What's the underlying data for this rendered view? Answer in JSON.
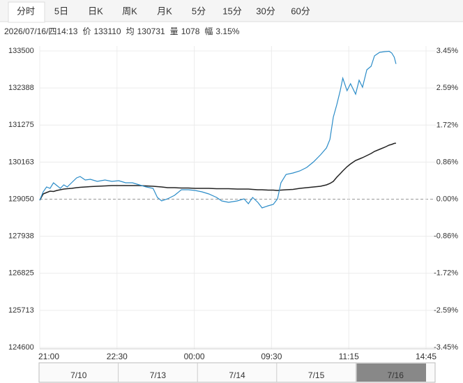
{
  "tabs": [
    "分时",
    "5日",
    "日K",
    "周K",
    "月K",
    "5分",
    "15分",
    "30分",
    "60分"
  ],
  "selected_tab": 0,
  "info": {
    "time": "2026/07/16/四14:13",
    "price_label": "价",
    "price": 133110,
    "avg_label": "均",
    "avg": 130731,
    "vol_label": "量",
    "vol": 1078,
    "range_label": "幅",
    "range": "3.15%"
  },
  "chart_data": {
    "type": "line",
    "x": [
      0,
      4,
      8,
      12,
      16,
      20,
      24,
      28,
      32,
      37,
      43,
      47,
      53,
      59,
      67,
      76,
      84,
      92,
      100,
      108,
      116,
      124,
      132,
      137,
      142,
      149,
      157,
      165,
      173,
      181,
      189,
      197,
      206,
      212,
      220,
      230,
      238,
      243,
      248,
      254,
      259,
      266,
      272,
      277,
      281,
      287,
      295,
      303,
      311,
      319,
      327,
      334,
      338,
      342,
      346,
      350,
      353,
      358,
      362,
      368,
      372,
      376,
      381,
      386,
      390,
      396,
      402,
      407,
      410,
      413,
      415
    ],
    "series": [
      {
        "color": "#2b8cc8",
        "values": [
          129019,
          129270,
          129417,
          129375,
          129542,
          129459,
          129375,
          129480,
          129417,
          129542,
          129689,
          129731,
          129626,
          129647,
          129584,
          129626,
          129584,
          129605,
          129542,
          129542,
          129480,
          129417,
          129375,
          129103,
          128998,
          129061,
          129165,
          129333,
          129333,
          129312,
          129270,
          129207,
          129103,
          128998,
          128956,
          128998,
          129061,
          128914,
          129103,
          128956,
          128788,
          128851,
          128893,
          129061,
          129542,
          129794,
          129835,
          129898,
          130003,
          130171,
          130380,
          130589,
          130841,
          131511,
          131888,
          132306,
          132683,
          132306,
          132516,
          132202,
          132621,
          132411,
          132935,
          133039,
          133353,
          133458,
          133480,
          133490,
          133437,
          133312,
          133110
        ]
      },
      {
        "color": "#222222",
        "values": [
          129019,
          129207,
          129249,
          129291,
          129280,
          129312,
          129333,
          129354,
          129365,
          129375,
          129396,
          129406,
          129417,
          129427,
          129438,
          129448,
          129459,
          129459,
          129459,
          129459,
          129459,
          129448,
          129438,
          129427,
          129417,
          129396,
          129396,
          129385,
          129385,
          129375,
          129375,
          129375,
          129364,
          129364,
          129364,
          129354,
          129354,
          129354,
          129343,
          129333,
          129333,
          129322,
          129322,
          129312,
          129322,
          129333,
          129343,
          129375,
          129396,
          129417,
          129438,
          129480,
          129521,
          129584,
          129710,
          129815,
          129898,
          130024,
          130108,
          130212,
          130254,
          130296,
          130359,
          130422,
          130485,
          130547,
          130610,
          130673,
          130694,
          130725,
          130731
        ]
      }
    ],
    "xlim": [
      0,
      450
    ],
    "xticks": [
      {
        "value": 0,
        "label": "21:00"
      },
      {
        "value": 90,
        "label": "22:30"
      },
      {
        "value": 180,
        "label": "00:00"
      },
      {
        "value": 270,
        "label": "09:30"
      },
      {
        "value": 360,
        "label": "11:15"
      },
      {
        "value": 450,
        "label": "14:45"
      }
    ],
    "ylim": [
      124600,
      133500
    ],
    "yticks": [
      133500,
      132388,
      131275,
      130163,
      129050,
      127938,
      126825,
      125713,
      124600
    ],
    "y2lim": [
      -3.45,
      3.45
    ],
    "y2ticks": [
      {
        "value": 3.45,
        "label": "3.45%"
      },
      {
        "value": 2.59,
        "label": "2.59%"
      },
      {
        "value": 1.72,
        "label": "1.72%"
      },
      {
        "value": 0.86,
        "label": "0.86%"
      },
      {
        "value": 0,
        "label": "0.00%"
      },
      {
        "value": -0.86,
        "label": "-0.86%"
      },
      {
        "value": -1.72,
        "label": "-1.72%"
      },
      {
        "value": -2.59,
        "label": "-2.59%"
      },
      {
        "value": -3.45,
        "label": "-3.45%"
      }
    ],
    "base": 129050,
    "up_color": "#e02020",
    "down_color": "#119911",
    "grid": true
  },
  "navigator": {
    "labels": [
      "7/10",
      "7/13",
      "7/14",
      "7/15",
      "7/16"
    ],
    "selected": 4
  }
}
